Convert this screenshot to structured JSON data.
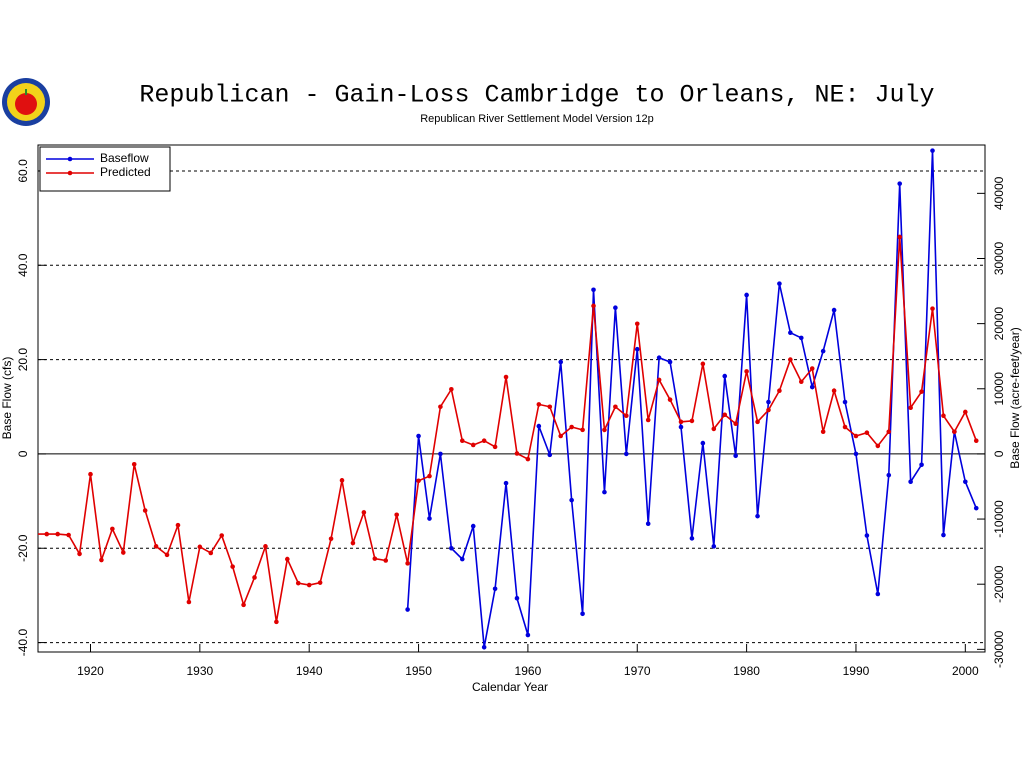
{
  "chart_data": {
    "type": "line",
    "title": "Republican - Gain-Loss Cambridge to Orleans, NE: July",
    "subtitle": "Republican River Settlement Model Version 12p",
    "x_label": "Calendar Year",
    "y_label": "Base Flow (cfs)",
    "y2_label": "Base Flow (acre-feet/year)",
    "x": [
      1915,
      1916,
      1917,
      1918,
      1919,
      1920,
      1921,
      1922,
      1923,
      1924,
      1925,
      1926,
      1927,
      1928,
      1929,
      1930,
      1931,
      1932,
      1933,
      1934,
      1935,
      1936,
      1937,
      1938,
      1939,
      1940,
      1941,
      1942,
      1943,
      1944,
      1945,
      1946,
      1947,
      1948,
      1949,
      1950,
      1951,
      1952,
      1953,
      1954,
      1955,
      1956,
      1957,
      1958,
      1959,
      1960,
      1961,
      1962,
      1963,
      1964,
      1965,
      1966,
      1967,
      1968,
      1969,
      1970,
      1971,
      1972,
      1973,
      1974,
      1975,
      1976,
      1977,
      1978,
      1979,
      1980,
      1981,
      1982,
      1983,
      1984,
      1985,
      1986,
      1987,
      1988,
      1989,
      1990,
      1991,
      1992,
      1993,
      1994,
      1995,
      1996,
      1997,
      1998,
      1999,
      2000,
      2001
    ],
    "series": [
      {
        "name": "Baseflow",
        "color": "#0000dd",
        "values": [
          null,
          null,
          null,
          null,
          null,
          null,
          null,
          null,
          null,
          null,
          null,
          null,
          null,
          null,
          null,
          null,
          null,
          null,
          null,
          null,
          null,
          null,
          null,
          null,
          null,
          null,
          null,
          null,
          null,
          null,
          null,
          null,
          null,
          null,
          -33,
          3.8,
          -13.7,
          0,
          -20,
          -22.3,
          -15.3,
          -41,
          -28.6,
          -6.2,
          -30.6,
          -38.4,
          5.9,
          -0.2,
          19.5,
          -9.8,
          -33.9,
          34.8,
          -8.1,
          31,
          0,
          22.2,
          -14.8,
          20.4,
          19.5,
          5.7,
          -17.9,
          2.3,
          -19.6,
          16.5,
          -0.4,
          33.7,
          -13.2,
          11,
          36.1,
          25.7,
          24.6,
          14.2,
          21.8,
          30.5,
          11,
          0,
          -17.3,
          -29.7,
          -4.5,
          57.3,
          -5.9,
          -2.3,
          64.3,
          -17.2,
          4.7,
          -5.9,
          -11.5
        ]
      },
      {
        "name": "Predicted",
        "color": "#e00000",
        "values": [
          -17,
          -17,
          -17,
          -17.2,
          -21.2,
          -4.3,
          -22.5,
          -15.9,
          -20.9,
          -2.2,
          -12,
          -19.6,
          -21.4,
          -15.1,
          -31.4,
          -19.7,
          -21,
          -17.3,
          -23.9,
          -32,
          -26.2,
          -19.6,
          -35.6,
          -22.3,
          -27.4,
          -27.8,
          -27.3,
          -18,
          -5.6,
          -18.9,
          -12.4,
          -22.2,
          -22.6,
          -12.9,
          -23.2,
          -5.7,
          -4.7,
          10,
          13.7,
          2.8,
          1.9,
          2.8,
          1.5,
          16.3,
          0.1,
          -1.1,
          10.5,
          10,
          3.8,
          5.7,
          5.1,
          31.4,
          5.1,
          10,
          8.1,
          27.6,
          7.2,
          15.7,
          11.5,
          6.8,
          7,
          19.1,
          5.3,
          8.3,
          6.4,
          17.5,
          6.8,
          9.3,
          13.4,
          20,
          15.3,
          18.1,
          4.7,
          13.4,
          5.7,
          3.8,
          4.5,
          1.7,
          4.7,
          46,
          9.8,
          13.2,
          30.8,
          8.1,
          4.7,
          8.9,
          2.8
        ]
      }
    ],
    "xlim": [
      1915.2,
      2001.8
    ],
    "xticks": [
      1920,
      1930,
      1940,
      1950,
      1960,
      1970,
      1980,
      1990,
      2000
    ],
    "ylim": [
      -42,
      65.5
    ],
    "yticks": [
      {
        "value": -40,
        "label": "-40.0"
      },
      {
        "value": -20,
        "label": "-20.0"
      },
      0,
      {
        "value": 20,
        "label": "20.0"
      },
      {
        "value": 40,
        "label": "40.0"
      },
      {
        "value": 60,
        "label": "60.0"
      }
    ],
    "y2lim": [
      -30408,
      47422
    ],
    "y2ticks": [
      -30000,
      -20000,
      -10000,
      0,
      10000,
      20000,
      30000,
      40000
    ],
    "grid": true,
    "legend": "upper-left"
  }
}
